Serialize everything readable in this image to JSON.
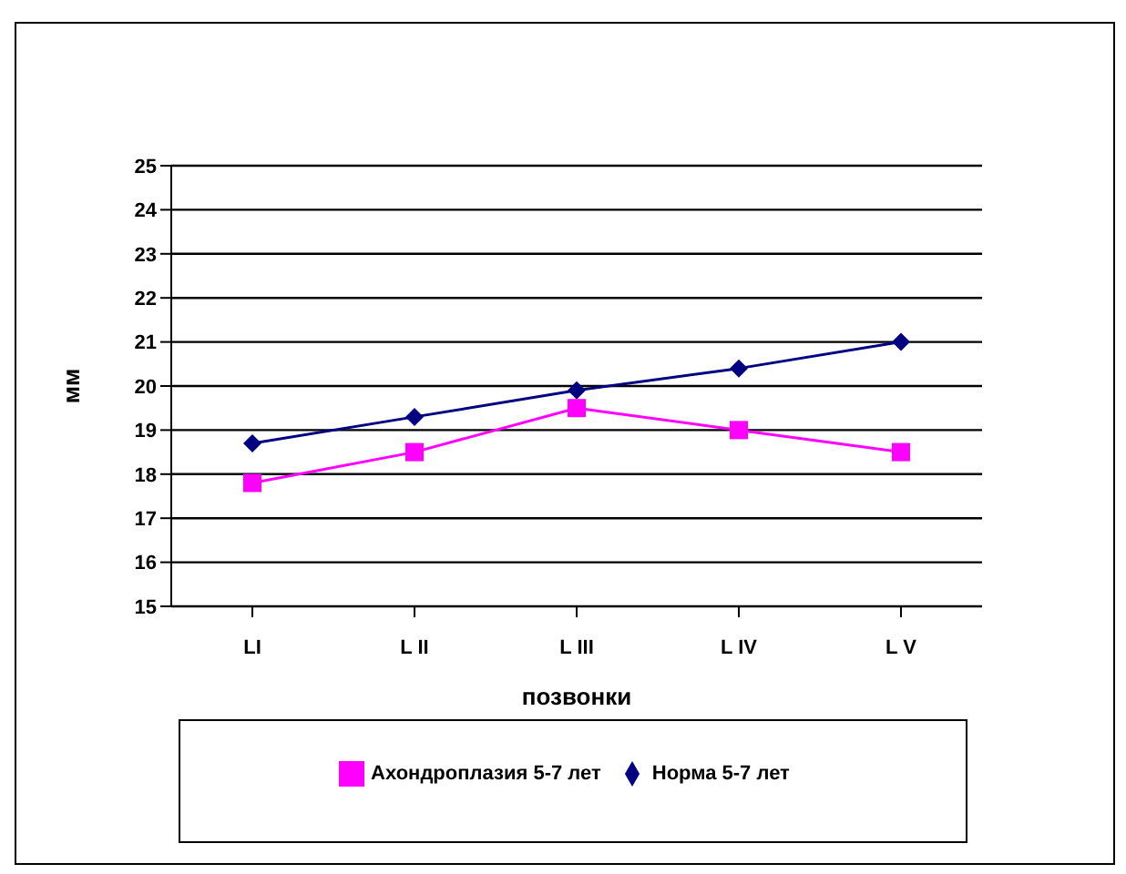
{
  "chart_data": {
    "type": "line",
    "xlabel": "позвонки",
    "ylabel": "мм",
    "categories": [
      "LI",
      "L II",
      "L III",
      "L IV",
      "L V"
    ],
    "series": [
      {
        "name": "Норма 5-7 лет",
        "color": "#000080",
        "marker": "diamond",
        "values": [
          18.7,
          19.3,
          19.9,
          20.4,
          21.0
        ]
      },
      {
        "name": "Ахондроплазия 5-7 лет",
        "color": "#ff00ff",
        "marker": "square",
        "values": [
          17.8,
          18.5,
          19.5,
          19.0,
          18.5
        ]
      }
    ],
    "ylim": [
      15,
      25
    ],
    "yticks": [
      15,
      16,
      17,
      18,
      19,
      20,
      21,
      22,
      23,
      24,
      25
    ],
    "grid": "y",
    "legend": "bottom"
  }
}
